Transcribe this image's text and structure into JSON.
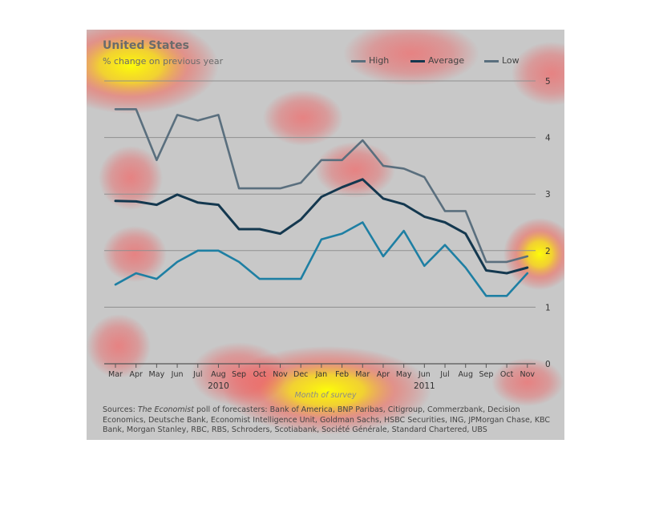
{
  "chart_data": {
    "type": "line",
    "title": "United States",
    "subtitle": "% change on previous year",
    "xlabel": "Month of survey",
    "ylabel": "",
    "ylim": [
      0,
      5
    ],
    "yticks": [
      0,
      1,
      2,
      3,
      4,
      5
    ],
    "grid": true,
    "legend_position": "top-right",
    "categories": [
      "Mar",
      "Apr",
      "May",
      "Jun",
      "Jul",
      "Aug",
      "Sep",
      "Oct",
      "Nov",
      "Dec",
      "Jan",
      "Feb",
      "Mar",
      "Apr",
      "May",
      "Jun",
      "Jul",
      "Aug",
      "Sep",
      "Oct",
      "Nov"
    ],
    "year_labels": [
      {
        "label": "2010",
        "index": 5
      },
      {
        "label": "2011",
        "index": 15
      }
    ],
    "series": [
      {
        "name": "High",
        "color": "#5a6f7e",
        "values": [
          4.5,
          4.5,
          3.6,
          4.4,
          4.3,
          4.4,
          3.1,
          3.1,
          3.1,
          3.2,
          3.6,
          3.6,
          3.95,
          3.5,
          3.45,
          3.3,
          2.7,
          2.7,
          1.8,
          1.8,
          1.9
        ]
      },
      {
        "name": "Average",
        "color": "#14384f",
        "values": [
          2.88,
          2.87,
          2.81,
          2.99,
          2.85,
          2.81,
          2.38,
          2.38,
          2.3,
          2.55,
          2.95,
          3.12,
          3.26,
          2.92,
          2.82,
          2.6,
          2.5,
          2.3,
          1.65,
          1.6,
          1.7
        ]
      },
      {
        "name": "Low",
        "color": "#1e7fa3",
        "values": [
          1.4,
          1.6,
          1.5,
          1.8,
          2.0,
          2.0,
          1.8,
          1.5,
          1.5,
          1.5,
          2.2,
          2.3,
          2.5,
          1.9,
          2.35,
          1.73,
          2.1,
          1.7,
          1.2,
          1.2,
          1.6
        ]
      }
    ]
  },
  "sources": {
    "prefix": "Sources: ",
    "publication": "The Economist",
    "rest": " poll of forecasters: Bank of America, BNP Paribas, Citigroup, Commerzbank, Decision Economics, Deutsche Bank, Economist Intelligence Unit, Goldman Sachs, HSBC Securities, ING, JPMorgan Chase, KBC Bank, Morgan Stanley, RBC, RBS, Schroders, Scotiabank, Société Générale, Standard Chartered, UBS"
  }
}
